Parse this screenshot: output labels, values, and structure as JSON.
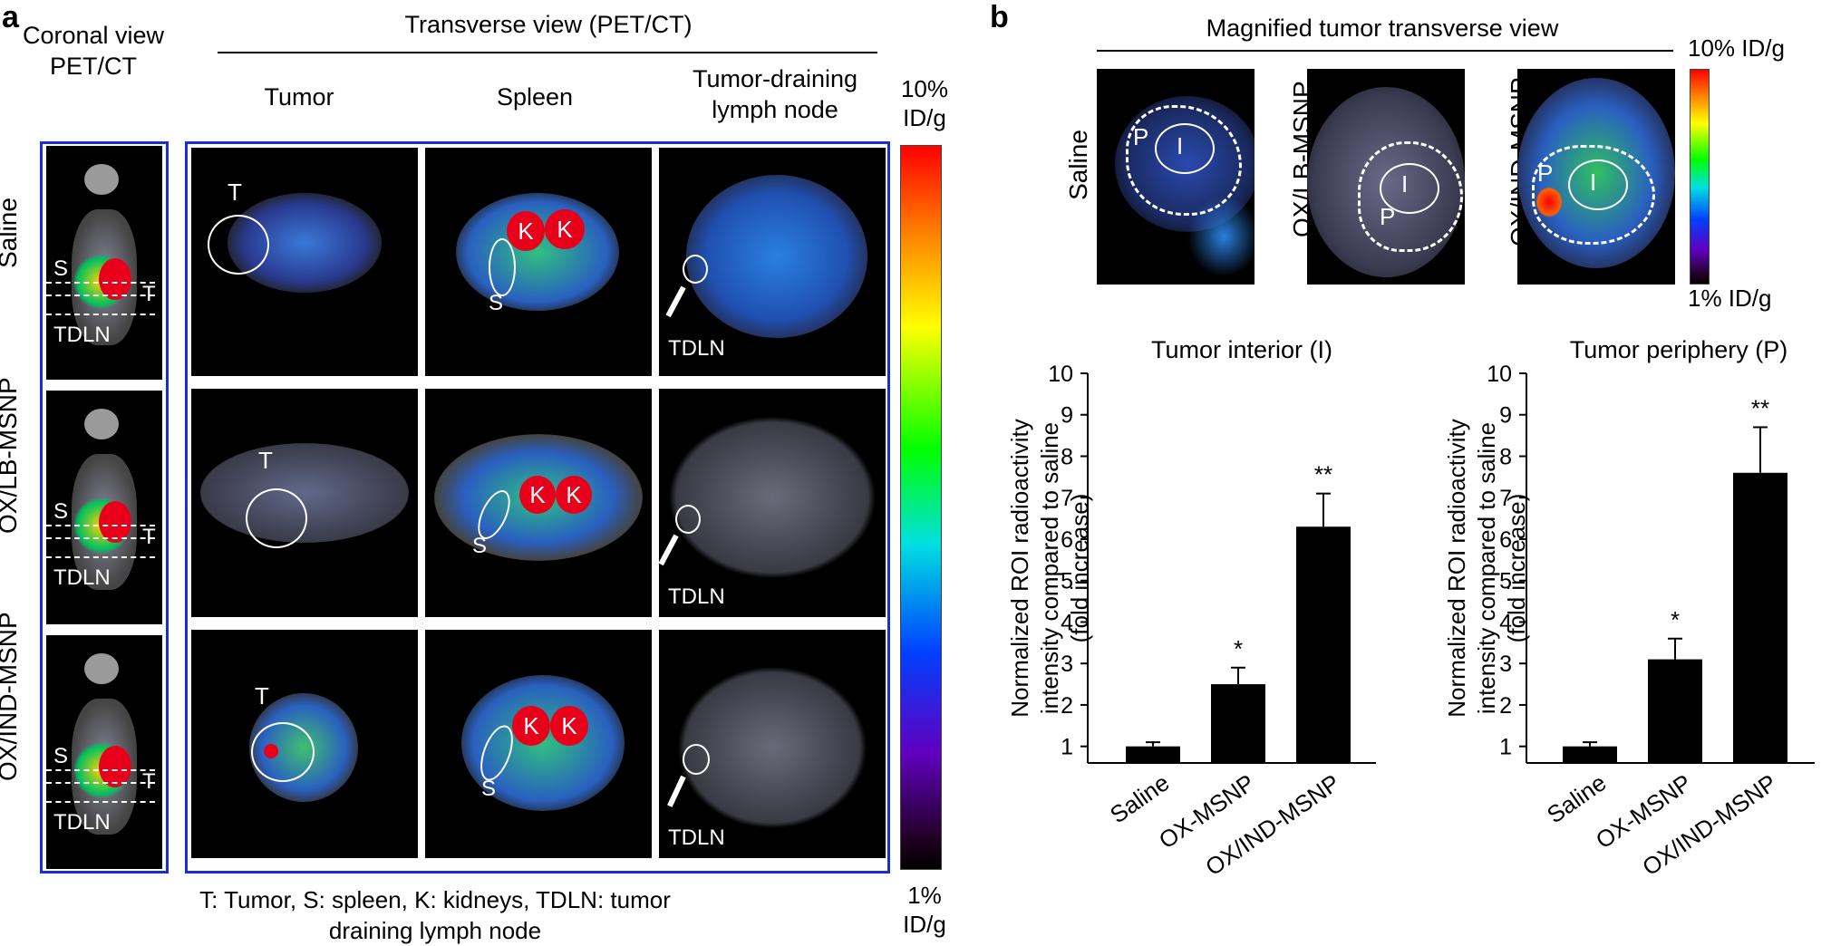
{
  "panel_a": {
    "letter": "a",
    "coronal_header": "Coronal view\nPET/CT",
    "transverse_header": "Transverse view (PET/CT)",
    "col_tumor": "Tumor",
    "col_spleen": "Spleen",
    "col_lymph": "Tumor-draining\nlymph node",
    "rows": [
      "Saline",
      "OX/LB-MSNP",
      "OX/IND-MSNP"
    ],
    "labels": {
      "T": "T",
      "S": "S",
      "K": "K",
      "TDLN": "TDLN"
    },
    "scale_top": "10%\nID/g",
    "scale_bottom": "1%\nID/g",
    "legend": "T: Tumor, S: spleen, K: kidneys, TDLN: tumor\ndraining lymph node",
    "colors": {
      "frame": "#1a2fd0"
    }
  },
  "panel_b": {
    "letter": "b",
    "header": "Magnified tumor transverse view",
    "rows": [
      "Saline",
      "OX/LB-MSNP",
      "OX/IND-MSNP"
    ],
    "labels": {
      "P": "P",
      "I": "I"
    },
    "scale_top": "10% ID/g",
    "scale_bottom": "1% ID/g"
  },
  "chart_data": [
    {
      "type": "bar",
      "title": "Tumor interior (I)",
      "ylabel": "Normalized ROI radioactivity\nintensity compared to saline\n(fold increase)",
      "categories": [
        "Saline",
        "OX-MSNP",
        "OX/IND-MSNP"
      ],
      "values": [
        1.0,
        2.5,
        6.3
      ],
      "errors": [
        0.1,
        0.4,
        0.8
      ],
      "significance": [
        "",
        "*",
        "**"
      ],
      "ylim": [
        0.6,
        10
      ],
      "yticks": [
        1,
        2,
        3,
        4,
        5,
        6,
        7,
        8,
        9,
        10
      ]
    },
    {
      "type": "bar",
      "title": "Tumor periphery (P)",
      "ylabel": "Normalized ROI radioactivity\nintensity compared to saline\n(fold increase)",
      "categories": [
        "Saline",
        "OX-MSNP",
        "OX/IND-MSNP"
      ],
      "values": [
        1.0,
        3.1,
        7.6
      ],
      "errors": [
        0.1,
        0.5,
        1.1
      ],
      "significance": [
        "",
        "*",
        "**"
      ],
      "ylim": [
        0.6,
        10
      ],
      "yticks": [
        1,
        2,
        3,
        4,
        5,
        6,
        7,
        8,
        9,
        10
      ]
    }
  ]
}
